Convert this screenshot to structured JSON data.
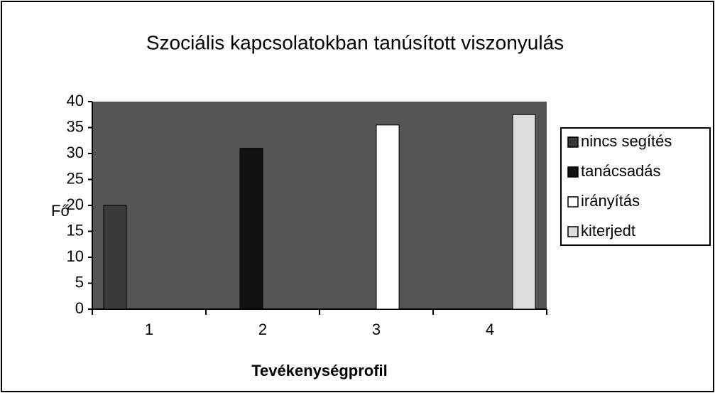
{
  "chart_data": {
    "type": "bar",
    "title": "Szociális kapcsolatokban tanúsított viszonyulás",
    "x_label": "Tevékenységprofil",
    "y_label": "Fő",
    "categories": [
      "1",
      "2",
      "3",
      "4"
    ],
    "series": [
      {
        "name": "nincs segítés",
        "color": "#3a3a3a",
        "values": [
          20,
          0,
          0,
          0
        ]
      },
      {
        "name": "tanácsadás",
        "color": "#111111",
        "values": [
          0,
          31,
          0,
          0
        ]
      },
      {
        "name": "irányítás",
        "color": "#ffffff",
        "values": [
          0,
          0,
          35.5,
          0
        ]
      },
      {
        "name": "kiterjedt",
        "color": "#dcdcdc",
        "values": [
          0,
          0,
          0,
          37.5
        ]
      }
    ],
    "ylim": [
      0,
      40
    ],
    "yticks": [
      0,
      5,
      10,
      15,
      20,
      25,
      30,
      35,
      40
    ],
    "grid": false,
    "legend": "right"
  }
}
